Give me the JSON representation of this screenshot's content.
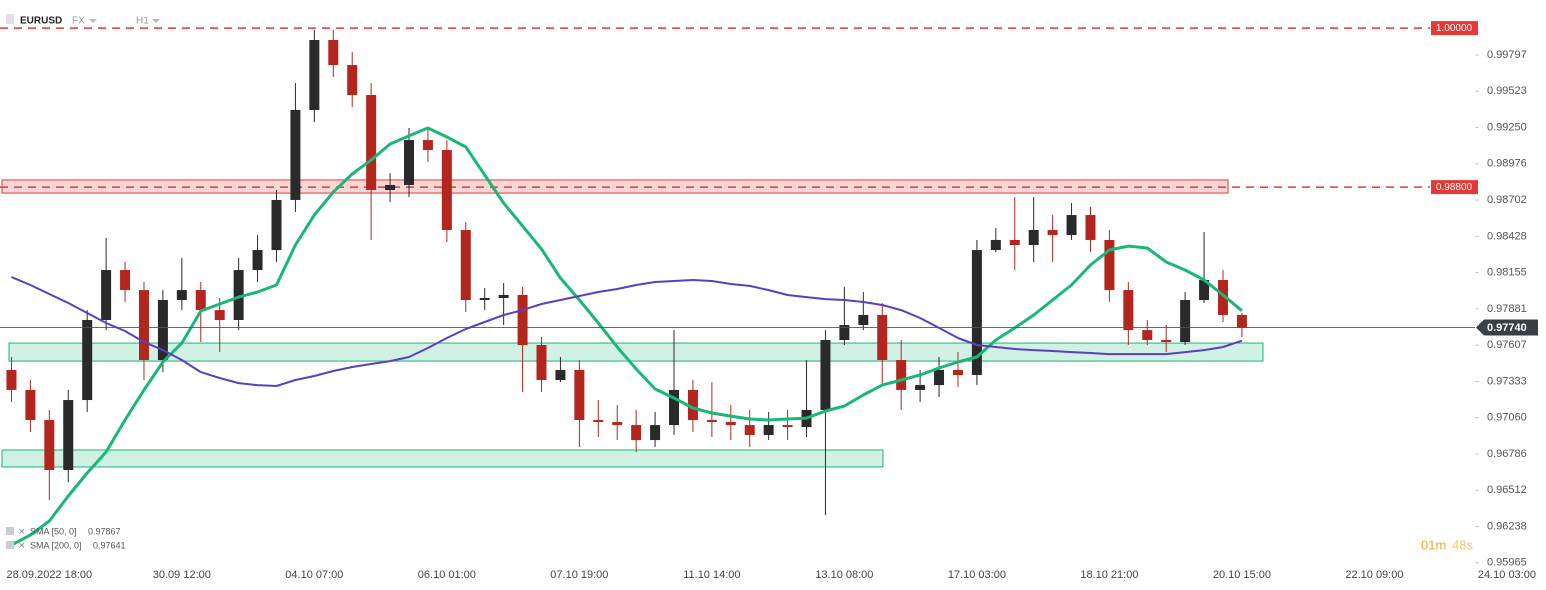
{
  "chart_data": {
    "type": "candlestick",
    "symbol": "EURUSD",
    "market": "FX",
    "interval": "H1",
    "categories": [
      null,
      null,
      "28.09.2022 18:00",
      null,
      null,
      null,
      null,
      null,
      null,
      "30.09 12:00",
      null,
      null,
      null,
      null,
      null,
      null,
      "04.10 07:00",
      null,
      null,
      null,
      null,
      null,
      null,
      "06.10 01:00",
      null,
      null,
      null,
      null,
      null,
      null,
      "07.10 19:00",
      null,
      null,
      null,
      null,
      null,
      null,
      "11.10 14:00",
      null,
      null,
      null,
      null,
      null,
      null,
      "13.10 08:00",
      null,
      null,
      null,
      null,
      null,
      null,
      "17.10 03:00",
      null,
      null,
      null,
      null,
      null,
      null,
      "18.10 21:00",
      null,
      null,
      null,
      null,
      null,
      null,
      "20.10 15:00",
      null,
      null,
      null,
      null,
      null,
      null,
      "22.10 09:00",
      null,
      null,
      null,
      null,
      null,
      null,
      "24.10 03:00"
    ],
    "open": [
      0.9742,
      0.97269,
      0.97042,
      0.96665,
      0.97193,
      0.97797,
      0.98174,
      0.98023,
      0.97495,
      0.97948,
      0.98023,
      0.97872,
      0.97797,
      0.98174,
      0.98325,
      0.98703,
      0.99382,
      0.9991,
      0.99721,
      0.99495,
      0.98778,
      0.98816,
      0.99155,
      0.9908,
      0.98476,
      0.97948,
      0.97963,
      0.97986,
      0.97608,
      0.97344,
      0.9742,
      0.97042,
      0.97027,
      0.97004,
      0.96891,
      0.97004,
      0.97269,
      0.97042,
      0.97027,
      0.97004,
      0.96929,
      0.97004,
      0.96989,
      0.97118,
      0.97646,
      0.97759,
      0.97835,
      0.97495,
      0.97269,
      0.97306,
      0.9742,
      0.97382,
      0.98325,
      0.98401,
      0.98363,
      0.98476,
      0.98438,
      0.98589,
      0.98401,
      0.98023,
      0.97721,
      0.97646,
      0.97631,
      0.97948,
      0.98099,
      0.97835,
      null,
      null,
      null,
      null,
      null,
      null,
      null,
      null,
      null,
      null,
      null,
      null,
      null,
      null
    ],
    "high": [
      0.97518,
      0.97344,
      0.97118,
      0.97269,
      0.97872,
      0.98416,
      0.98235,
      0.98084,
      0.98023,
      0.98265,
      0.98084,
      0.97963,
      0.98265,
      0.98438,
      0.98778,
      0.99586,
      0.99986,
      0.99986,
      0.9982,
      0.99586,
      0.98906,
      0.99246,
      0.99246,
      0.99155,
      0.98537,
      0.98038,
      0.98076,
      0.98046,
      0.97669,
      0.97518,
      0.97495,
      0.97193,
      0.97155,
      0.97118,
      0.97103,
      0.97721,
      0.97344,
      0.97329,
      0.97155,
      0.97118,
      0.97103,
      0.97118,
      0.97495,
      0.97721,
      0.98046,
      0.98008,
      0.97925,
      0.97646,
      0.9742,
      0.97518,
      0.97555,
      0.98401,
      0.98491,
      0.98725,
      0.98725,
      0.98589,
      0.9868,
      0.9865,
      0.98476,
      0.98084,
      0.97797,
      0.97759,
      0.98008,
      0.98461,
      0.98174,
      0.9785,
      null,
      null,
      null,
      null,
      null,
      null,
      null,
      null,
      null,
      null,
      null,
      null,
      null,
      null
    ],
    "low": [
      0.97178,
      0.96952,
      0.96438,
      0.96574,
      0.97103,
      0.97721,
      0.97933,
      0.97344,
      0.97404,
      0.97872,
      0.97631,
      0.97555,
      0.97721,
      0.98084,
      0.98235,
      0.98612,
      0.99291,
      0.99631,
      0.99404,
      0.98401,
      0.98687,
      0.98725,
      0.98989,
      0.98386,
      0.97857,
      0.97872,
      0.97759,
      0.97254,
      0.97254,
      0.97329,
      0.96838,
      0.96914,
      0.96891,
      0.96801,
      0.96838,
      0.96929,
      0.96952,
      0.96914,
      0.96891,
      0.96838,
      0.96891,
      0.96891,
      0.96914,
      0.96325,
      0.97608,
      0.97721,
      0.97306,
      0.97118,
      0.97178,
      0.97216,
      0.97291,
      0.97306,
      0.9831,
      0.98174,
      0.98235,
      0.98235,
      0.98401,
      0.9831,
      0.97933,
      0.97608,
      0.97608,
      0.97555,
      0.97608,
      0.97925,
      0.97782,
      0.97669,
      null,
      null,
      null,
      null,
      null,
      null,
      null,
      null,
      null,
      null,
      null,
      null,
      null,
      null
    ],
    "close": [
      0.97269,
      0.97042,
      0.96665,
      0.97193,
      0.97797,
      0.98174,
      0.98023,
      0.97495,
      0.97948,
      0.98023,
      0.97872,
      0.97797,
      0.98174,
      0.98325,
      0.98703,
      0.99382,
      0.9991,
      0.99721,
      0.99495,
      0.98778,
      0.98816,
      0.99155,
      0.9908,
      0.98476,
      0.97948,
      0.97963,
      0.97986,
      0.97608,
      0.97344,
      0.9742,
      0.97042,
      0.97027,
      0.97004,
      0.96891,
      0.97004,
      0.97269,
      0.97042,
      0.97027,
      0.97004,
      0.96929,
      0.97004,
      0.96989,
      0.97118,
      0.97646,
      0.97759,
      0.97835,
      0.97495,
      0.97269,
      0.97306,
      0.9742,
      0.97382,
      0.98325,
      0.98401,
      0.98363,
      0.98476,
      0.98438,
      0.98589,
      0.98401,
      0.98023,
      0.97721,
      0.97646,
      0.97631,
      0.97948,
      0.98099,
      0.97835,
      0.9774,
      null,
      null,
      null,
      null,
      null,
      null,
      null,
      null,
      null,
      null,
      null,
      null,
      null,
      null
    ],
    "up_color": "#2a2a2a",
    "down_color": "#b3261e",
    "series": [
      {
        "name": "SMA [50, 0]",
        "color": "#19b877",
        "values": [
          0.96099,
          0.96174,
          0.9628,
          0.96469,
          0.96642,
          0.96801,
          0.97042,
          0.97269,
          0.9748,
          0.97623,
          0.97865,
          0.97918,
          0.9797,
          0.98008,
          0.98061,
          0.98363,
          0.98589,
          0.98763,
          0.98899,
          0.99004,
          0.99125,
          0.99186,
          0.99246,
          0.99178,
          0.99103,
          0.98891,
          0.9868,
          0.98506,
          0.98333,
          0.98114,
          0.97948,
          0.97774,
          0.97593,
          0.97427,
          0.97276,
          0.97208,
          0.97133,
          0.97095,
          0.97072,
          0.9705,
          0.97042,
          0.9705,
          0.97057,
          0.9711,
          0.97148,
          0.97231,
          0.97306,
          0.97344,
          0.97382,
          0.97435,
          0.9748,
          0.97518,
          0.97646,
          0.97737,
          0.97835,
          0.97948,
          0.98061,
          0.98212,
          0.98325,
          0.98355,
          0.9834,
          0.98235,
          0.98174,
          0.98099,
          0.97986,
          0.97867,
          null,
          null,
          null,
          null,
          null,
          null,
          null,
          null,
          null,
          null,
          null,
          null,
          null,
          null
        ]
      },
      {
        "name": "SMA [200, 0]",
        "color": "#5a3fc0",
        "values": [
          0.98121,
          0.98061,
          0.97993,
          0.97925,
          0.9785,
          0.97774,
          0.97714,
          0.97631,
          0.9757,
          0.97495,
          0.97404,
          0.97359,
          0.97321,
          0.97306,
          0.97299,
          0.97344,
          0.97374,
          0.97412,
          0.97442,
          0.97465,
          0.97487,
          0.97518,
          0.97586,
          0.97661,
          0.97729,
          0.97782,
          0.97835,
          0.97872,
          0.97918,
          0.97948,
          0.97978,
          0.98008,
          0.98031,
          0.98061,
          0.98084,
          0.98091,
          0.98099,
          0.98091,
          0.98069,
          0.98054,
          0.98023,
          0.97986,
          0.9797,
          0.97955,
          0.97948,
          0.97933,
          0.9791,
          0.97872,
          0.97812,
          0.97737,
          0.97661,
          0.97608,
          0.97593,
          0.97578,
          0.9757,
          0.97563,
          0.97555,
          0.97548,
          0.9754,
          0.9754,
          0.9754,
          0.9754,
          0.97555,
          0.9757,
          0.97593,
          0.97641,
          null,
          null,
          null,
          null,
          null,
          null,
          null,
          null,
          null,
          null,
          null,
          null,
          null,
          null
        ]
      }
    ],
    "ylim": [
      0.95948,
      1.00212
    ],
    "yticks": [
      0.99797,
      0.99523,
      {
        "value": 0.9925,
        "label": "0.99250"
      },
      0.98976,
      0.98702,
      0.98428,
      0.98155,
      0.97881,
      0.97607,
      0.97333,
      {
        "value": 0.9706,
        "label": "0.97060"
      },
      0.96786,
      0.96512,
      0.96238,
      0.95965
    ],
    "grid": false,
    "levels": [
      {
        "value": 1,
        "label": "1.00000",
        "color": "#e53935"
      },
      {
        "value": 0.988,
        "label": "0.98800",
        "color": "#e53935"
      }
    ],
    "current_price": {
      "value": 0.9774,
      "label": "0.97740"
    },
    "zones": [
      {
        "from": 0.98755,
        "to": 0.98854,
        "color": "#e53935"
      },
      {
        "from": 0.97487,
        "to": 0.97623,
        "color": "#19b877"
      },
      {
        "from": 0.96688,
        "to": 0.96816,
        "color": "#19b877"
      }
    ],
    "timer": [
      "01m",
      "48s"
    ]
  }
}
